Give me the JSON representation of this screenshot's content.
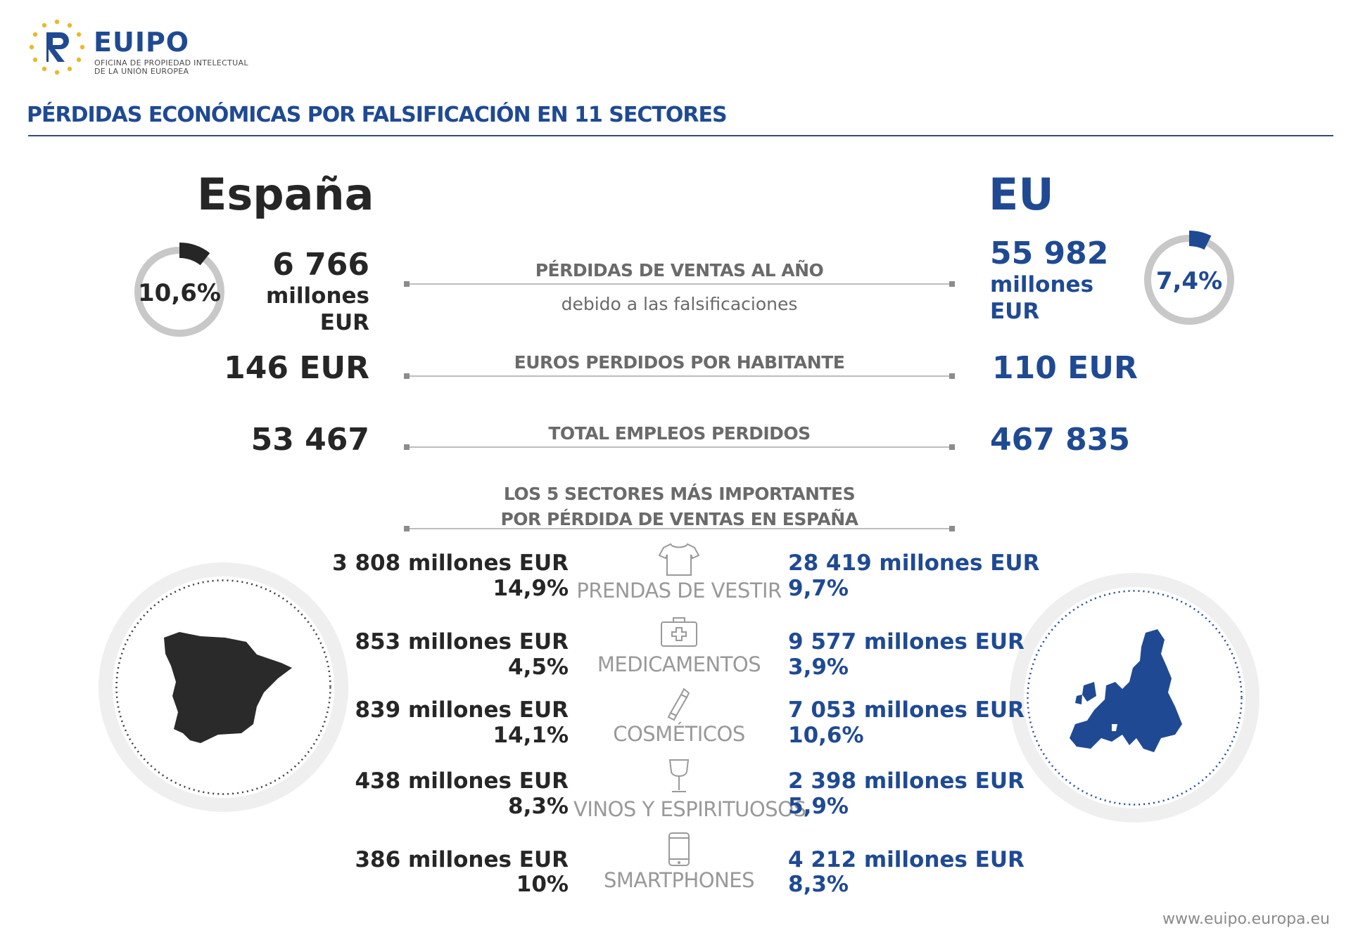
{
  "header": {
    "logo_name": "EUIPO",
    "logo_subtitle_line1": "OFICINA DE PROPIEDAD INTELECTUAL",
    "logo_subtitle_line2": "DE LA UNIÓN EUROPEA",
    "title": "PÉRDIDAS ECONÓMICAS POR FALSIFICACIÓN EN 11 SECTORES"
  },
  "spain": {
    "heading": "España",
    "share_percent": "10,6%",
    "share_fraction": 0.106,
    "sales_loss_value": "6 766",
    "sales_loss_unit1": "millones",
    "sales_loss_unit2": "EUR",
    "per_capita": "146 EUR",
    "jobs_lost": "53 467"
  },
  "eu": {
    "heading": "EU",
    "share_percent": "7,4%",
    "share_fraction": 0.074,
    "sales_loss_value": "55 982",
    "sales_loss_unit1": "millones",
    "sales_loss_unit2": "EUR",
    "per_capita": "110 EUR",
    "jobs_lost": "467 835"
  },
  "metrics": {
    "sales_loss_label": "PÉRDIDAS DE VENTAS AL AÑO",
    "sales_loss_sublabel": "debido a las falsificaciones",
    "per_capita_label": "EUROS PERDIDOS POR HABITANTE",
    "jobs_label": "TOTAL EMPLEOS PERDIDOS",
    "top_sectors_label_line1": "LOS 5 SECTORES MÁS IMPORTANTES",
    "top_sectors_label_line2": "POR PÉRDIDA DE VENTAS EN ESPAÑA"
  },
  "sectors": [
    {
      "label": "PRENDAS DE VESTIR",
      "icon": "tshirt-icon",
      "es_value": "3 808 millones EUR",
      "es_pct": "14,9%",
      "eu_value": "28 419 millones EUR",
      "eu_pct": "9,7%"
    },
    {
      "label": "MEDICAMENTOS",
      "icon": "medkit-icon",
      "es_value": "853 millones EUR",
      "es_pct": "4,5%",
      "eu_value": "9 577 millones EUR",
      "eu_pct": "3,9%"
    },
    {
      "label": "COSMÉTICOS",
      "icon": "lipstick-icon",
      "es_value": "839 millones EUR",
      "es_pct": "14,1%",
      "eu_value": "7 053 millones EUR",
      "eu_pct": "10,6%"
    },
    {
      "label": "VINOS Y ESPIRITUOSOS",
      "icon": "wine-glass-icon",
      "es_value": "438 millones EUR",
      "es_pct": "8,3%",
      "eu_value": "2 398 millones EUR",
      "eu_pct": "5,9%"
    },
    {
      "label": "SMARTPHONES",
      "icon": "smartphone-icon",
      "es_value": "386 millones EUR",
      "es_pct": "10%",
      "eu_value": "4 212 millones EUR",
      "eu_pct": "8,3%"
    }
  ],
  "footer": {
    "url": "www.euipo.europa.eu"
  },
  "colors": {
    "blue": "#1f4a93",
    "dark": "#262626",
    "ring": "#c8c8c8"
  }
}
